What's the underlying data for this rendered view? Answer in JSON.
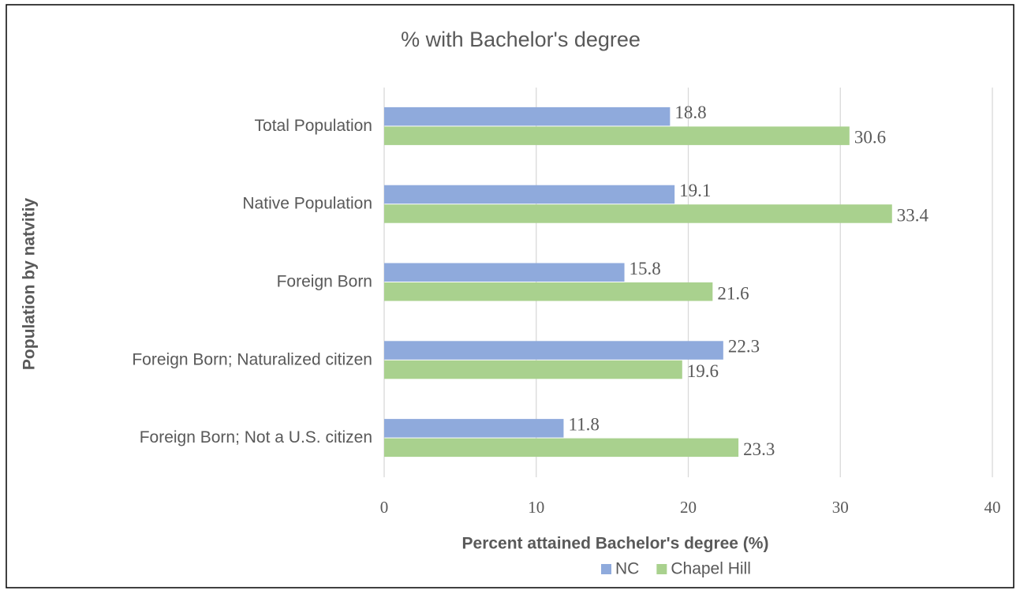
{
  "chart_data": {
    "type": "barh",
    "title": "% with Bachelor's degree",
    "xlabel": "Percent attained Bachelor's degree (%)",
    "ylabel": "Population by natvitiy",
    "categories": [
      "Total Population",
      "Native Population",
      "Foreign Born",
      "Foreign Born; Naturalized citizen",
      "Foreign Born; Not a U.S. citizen"
    ],
    "series": [
      {
        "name": "NC",
        "color": "#8faadc",
        "values": [
          18.8,
          19.1,
          15.8,
          22.3,
          11.8
        ]
      },
      {
        "name": "Chapel Hill",
        "color": "#a9d18e",
        "values": [
          30.6,
          33.4,
          21.6,
          19.6,
          23.3
        ]
      }
    ],
    "xlim": [
      0,
      40
    ],
    "xticks": [
      0,
      10,
      20,
      30,
      40
    ],
    "grid": true,
    "legend": "bottom"
  }
}
